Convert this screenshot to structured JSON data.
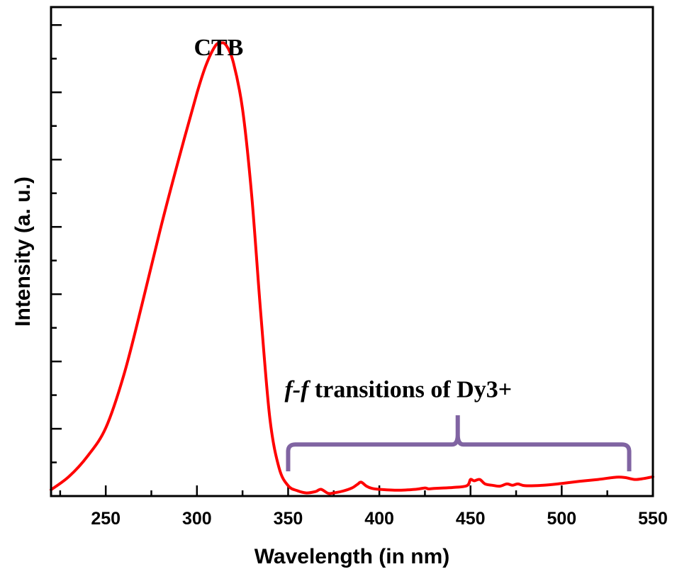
{
  "chart_data": {
    "type": "line",
    "xlabel": "Wavelength (in nm)",
    "ylabel": "Intensity (a. u.)",
    "xlim": [
      220,
      550
    ],
    "ylim": [
      0,
      1.09
    ],
    "x_ticks": [
      250,
      300,
      350,
      400,
      450,
      500,
      550
    ],
    "y_ticks_labeled": false,
    "grid": false,
    "legend": "none",
    "series": [
      {
        "color": "#ff0000",
        "x": [
          220,
          230,
          240,
          250,
          260,
          270,
          280,
          290,
          300,
          305,
          310,
          313,
          316,
          320,
          325,
          330,
          335,
          340,
          345,
          350,
          355,
          360,
          365,
          368,
          372,
          375,
          380,
          385,
          388,
          390,
          393,
          396,
          400,
          410,
          420,
          425,
          427,
          430,
          440,
          448,
          450,
          452,
          455,
          458,
          462,
          466,
          470,
          473,
          476,
          480,
          490,
          500,
          510,
          520,
          530,
          535,
          540,
          545,
          550
        ],
        "y": [
          0.014,
          0.044,
          0.089,
          0.152,
          0.271,
          0.429,
          0.596,
          0.751,
          0.898,
          0.961,
          1.003,
          1.01,
          1.005,
          0.966,
          0.863,
          0.671,
          0.406,
          0.173,
          0.063,
          0.023,
          0.012,
          0.007,
          0.01,
          0.015,
          0.006,
          0.007,
          0.011,
          0.018,
          0.026,
          0.031,
          0.022,
          0.017,
          0.015,
          0.013,
          0.015,
          0.018,
          0.016,
          0.017,
          0.019,
          0.023,
          0.037,
          0.034,
          0.037,
          0.027,
          0.024,
          0.022,
          0.027,
          0.024,
          0.027,
          0.023,
          0.024,
          0.028,
          0.033,
          0.037,
          0.042,
          0.041,
          0.037,
          0.039,
          0.043
        ]
      }
    ],
    "annotations": [
      {
        "text": "CTB",
        "x": 315,
        "y": 1.035
      },
      {
        "text_italic": "f-f",
        "text": " transitions of Dy3+",
        "x": 350,
        "y": 0.255
      }
    ],
    "bracket": {
      "x_start": 350,
      "x_end": 537,
      "x_peak": 443,
      "y_ends": 0.055,
      "y_bar": 0.115,
      "y_peak": 0.18,
      "color": "#8064a2"
    }
  }
}
